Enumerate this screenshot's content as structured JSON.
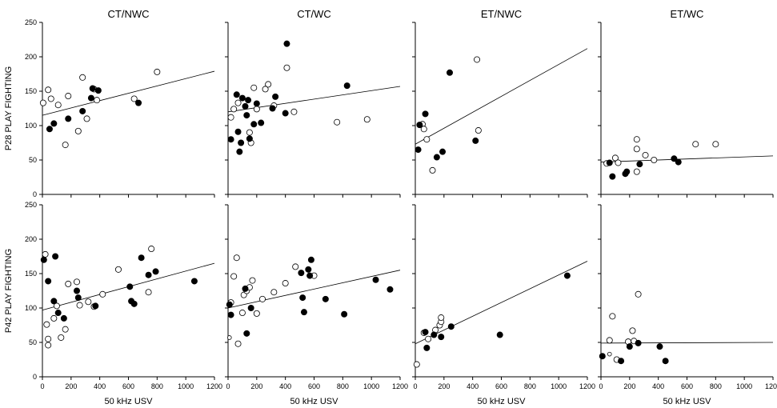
{
  "chart_data": {
    "type": "scatter",
    "column_titles": [
      "CT/NWC",
      "CT/WC",
      "ET/NWC",
      "ET/WC"
    ],
    "row_ylabels": [
      "P28 PLAY FIGHTING",
      "P42 PLAY FIGHTING"
    ],
    "xlabel": "50 kHz USV",
    "xlim": [
      0,
      1200
    ],
    "ylim": [
      0,
      250
    ],
    "xticks": [
      0,
      200,
      400,
      600,
      800,
      1000,
      1200
    ],
    "yticks": [
      0,
      50,
      100,
      150,
      200,
      250
    ],
    "grid": false,
    "series_styles": {
      "filled": "#000000",
      "open": "#ffffff"
    },
    "panels": [
      {
        "row": 0,
        "col": 0,
        "fit": [
          [
            0,
            115
          ],
          [
            1200,
            179
          ]
        ],
        "filled": [
          [
            50,
            95
          ],
          [
            80,
            103
          ],
          [
            180,
            110
          ],
          [
            280,
            121
          ],
          [
            340,
            140
          ],
          [
            350,
            154
          ],
          [
            390,
            151
          ],
          [
            670,
            133
          ]
        ],
        "open": [
          [
            5,
            133
          ],
          [
            40,
            152
          ],
          [
            60,
            139
          ],
          [
            110,
            130
          ],
          [
            160,
            72
          ],
          [
            180,
            143
          ],
          [
            250,
            92
          ],
          [
            280,
            170
          ],
          [
            310,
            110
          ],
          [
            360,
            153
          ],
          [
            380,
            137
          ],
          [
            640,
            139
          ],
          [
            800,
            178
          ]
        ]
      },
      {
        "row": 0,
        "col": 1,
        "fit": [
          [
            0,
            120
          ],
          [
            1200,
            157
          ]
        ],
        "filled": [
          [
            20,
            80
          ],
          [
            60,
            145
          ],
          [
            70,
            91
          ],
          [
            80,
            62
          ],
          [
            90,
            75
          ],
          [
            100,
            140
          ],
          [
            120,
            128
          ],
          [
            130,
            115
          ],
          [
            140,
            137
          ],
          [
            150,
            81
          ],
          [
            180,
            102
          ],
          [
            200,
            132
          ],
          [
            230,
            104
          ],
          [
            310,
            125
          ],
          [
            330,
            142
          ],
          [
            400,
            118
          ],
          [
            410,
            219
          ],
          [
            830,
            158
          ]
        ],
        "open": [
          [
            20,
            112
          ],
          [
            40,
            124
          ],
          [
            70,
            133
          ],
          [
            150,
            90
          ],
          [
            160,
            75
          ],
          [
            180,
            155
          ],
          [
            200,
            124
          ],
          [
            260,
            153
          ],
          [
            280,
            160
          ],
          [
            320,
            129
          ],
          [
            410,
            184
          ],
          [
            460,
            120
          ],
          [
            760,
            105
          ],
          [
            970,
            109
          ]
        ]
      },
      {
        "row": 0,
        "col": 2,
        "fit": [
          [
            0,
            73
          ],
          [
            1200,
            212
          ]
        ],
        "filled": [
          [
            20,
            65
          ],
          [
            30,
            101
          ],
          [
            70,
            117
          ],
          [
            150,
            54
          ],
          [
            190,
            62
          ],
          [
            240,
            177
          ],
          [
            420,
            78
          ]
        ],
        "open": [
          [
            50,
            102
          ],
          [
            60,
            95
          ],
          [
            80,
            80
          ],
          [
            120,
            35
          ],
          [
            430,
            196
          ],
          [
            440,
            93
          ]
        ]
      },
      {
        "row": 0,
        "col": 3,
        "fit": [
          [
            0,
            47
          ],
          [
            1200,
            56
          ]
        ],
        "filled": [
          [
            60,
            46
          ],
          [
            80,
            26
          ],
          [
            170,
            30
          ],
          [
            180,
            33
          ],
          [
            270,
            44
          ],
          [
            510,
            52
          ],
          [
            540,
            47
          ]
        ],
        "open": [
          [
            40,
            45
          ],
          [
            100,
            53
          ],
          [
            120,
            46
          ],
          [
            250,
            80
          ],
          [
            250,
            66
          ],
          [
            250,
            33
          ],
          [
            310,
            57
          ],
          [
            370,
            50
          ],
          [
            660,
            73
          ],
          [
            800,
            73
          ]
        ]
      },
      {
        "row": 1,
        "col": 0,
        "fit": [
          [
            0,
            97
          ],
          [
            1200,
            165
          ]
        ],
        "filled": [
          [
            10,
            170
          ],
          [
            40,
            139
          ],
          [
            80,
            110
          ],
          [
            90,
            175
          ],
          [
            110,
            93
          ],
          [
            150,
            85
          ],
          [
            240,
            125
          ],
          [
            250,
            115
          ],
          [
            370,
            103
          ],
          [
            610,
            131
          ],
          [
            620,
            110
          ],
          [
            640,
            106
          ],
          [
            690,
            173
          ],
          [
            740,
            148
          ],
          [
            790,
            153
          ],
          [
            1060,
            139
          ]
        ],
        "open": [
          [
            20,
            178
          ],
          [
            30,
            76
          ],
          [
            40,
            55
          ],
          [
            40,
            46
          ],
          [
            80,
            85
          ],
          [
            100,
            103
          ],
          [
            130,
            57
          ],
          [
            160,
            69
          ],
          [
            180,
            135
          ],
          [
            240,
            138
          ],
          [
            260,
            104
          ],
          [
            320,
            109
          ],
          [
            360,
            102
          ],
          [
            420,
            120
          ],
          [
            530,
            156
          ],
          [
            740,
            123
          ],
          [
            760,
            186
          ]
        ]
      },
      {
        "row": 1,
        "col": 1,
        "fit": [
          [
            0,
            100
          ],
          [
            1200,
            155
          ]
        ],
        "filled": [
          [
            10,
            105
          ],
          [
            20,
            90
          ],
          [
            120,
            128
          ],
          [
            130,
            63
          ],
          [
            160,
            100
          ],
          [
            510,
            151
          ],
          [
            520,
            115
          ],
          [
            530,
            94
          ],
          [
            560,
            156
          ],
          [
            570,
            147
          ],
          [
            580,
            170
          ],
          [
            680,
            113
          ],
          [
            810,
            91
          ],
          [
            1030,
            141
          ],
          [
            1130,
            127
          ]
        ],
        "open": [
          [
            20,
            108
          ],
          [
            40,
            146
          ],
          [
            60,
            173
          ],
          [
            70,
            48
          ],
          [
            100,
            93
          ],
          [
            110,
            119
          ],
          [
            130,
            125
          ],
          [
            150,
            130
          ],
          [
            170,
            140
          ],
          [
            200,
            92
          ],
          [
            240,
            113
          ],
          [
            320,
            123
          ],
          [
            400,
            136
          ],
          [
            470,
            160
          ],
          [
            600,
            147
          ]
        ],
        "open_small": [
          [
            10,
            57
          ]
        ]
      },
      {
        "row": 1,
        "col": 2,
        "fit": [
          [
            0,
            48
          ],
          [
            1200,
            168
          ]
        ],
        "filled": [
          [
            70,
            65
          ],
          [
            80,
            42
          ],
          [
            130,
            61
          ],
          [
            180,
            58
          ],
          [
            250,
            73
          ],
          [
            590,
            61
          ],
          [
            1060,
            147
          ]
        ],
        "open": [
          [
            10,
            18
          ],
          [
            60,
            64
          ],
          [
            90,
            55
          ],
          [
            140,
            68
          ],
          [
            170,
            75
          ],
          [
            180,
            80
          ],
          [
            180,
            86
          ]
        ]
      },
      {
        "row": 1,
        "col": 3,
        "fit": [
          [
            0,
            49
          ],
          [
            1200,
            50
          ]
        ],
        "filled": [
          [
            10,
            30
          ],
          [
            140,
            23
          ],
          [
            200,
            44
          ],
          [
            260,
            49
          ],
          [
            410,
            44
          ],
          [
            450,
            23
          ]
        ],
        "open": [
          [
            60,
            53
          ],
          [
            80,
            88
          ],
          [
            110,
            25
          ],
          [
            190,
            51
          ],
          [
            220,
            67
          ],
          [
            230,
            52
          ],
          [
            260,
            120
          ]
        ],
        "open_small": [
          [
            60,
            33
          ]
        ]
      }
    ]
  }
}
